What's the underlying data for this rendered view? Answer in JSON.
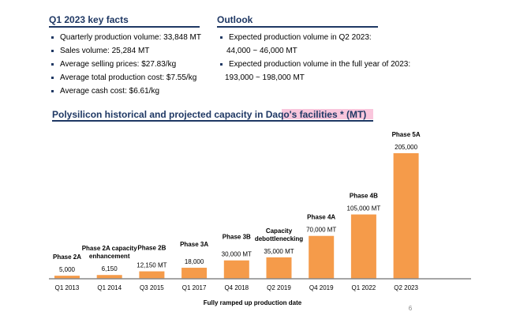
{
  "key_facts": {
    "title": "Q1 2023 key facts",
    "items": [
      "Quarterly production volume: 33,848 MT",
      "Sales volume: 25,284 MT",
      "Average selling prices: $27.83/kg",
      "Average total production cost: $7.55/kg",
      "Average cash cost: $6.61/kg"
    ]
  },
  "outlook": {
    "title": "Outlook",
    "item1": "Expected production volume in Q2 2023:",
    "item1_value": "44,000 ~ 46,000 MT",
    "item2": "Expected production volume in the full year of 2023:",
    "item2_value": "193,000 ~ 198,000 MT"
  },
  "page_number": "6",
  "colors": {
    "navy": "#1f3864",
    "bar": "#f59b4a",
    "highlight": "#f9c6dc"
  },
  "chart_data": {
    "type": "bar",
    "title": "Polysilicon historical and projected capacity in Daqo's facilities * (MT)",
    "xlabel": "Fully ramped up production date",
    "ylabel": "",
    "ylim": [
      0,
      205000
    ],
    "grid": false,
    "categories": [
      "Q1 2013",
      "Q1 2014",
      "Q3 2015",
      "Q1 2017",
      "Q4 2018",
      "Q2 2019",
      "Q4 2019",
      "Q1 2022",
      "Q2 2023"
    ],
    "values": [
      5000,
      6150,
      12150,
      18000,
      30000,
      35000,
      70000,
      105000,
      205000
    ],
    "data_labels": [
      "5,000",
      "6,150",
      "12,150 MT",
      "18,000",
      "30,000 MT",
      "35,000 MT",
      "70,000 MT",
      "105,000 MT",
      "205,000"
    ],
    "phase_labels": [
      [
        "Phase 2A"
      ],
      [
        "Phase 2A capacity",
        "enhancement"
      ],
      [
        "Phase 2B"
      ],
      [
        "Phase 3A"
      ],
      [
        "Phase 3B"
      ],
      [
        "Capacity",
        "debottlenecking"
      ],
      [
        "Phase 4A"
      ],
      [
        "Phase 4B"
      ],
      [
        "Phase 5A"
      ]
    ]
  }
}
